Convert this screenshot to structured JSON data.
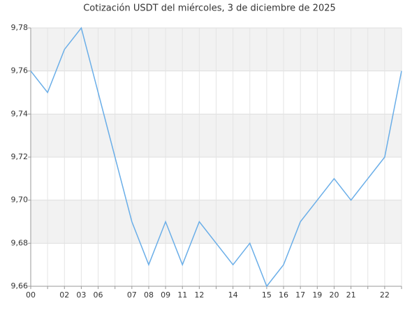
{
  "chart_data": {
    "type": "line",
    "title": "Cotización USDT del miércoles, 3 de diciembre de 2025",
    "categories": [
      "00",
      null,
      "02",
      "03",
      "06",
      null,
      "07",
      "08",
      "09",
      "11",
      "12",
      null,
      "14",
      null,
      "15",
      "16",
      "17",
      "19",
      "20",
      "21",
      null,
      "22",
      null
    ],
    "series": [
      {
        "name": "USDT",
        "color": "#6aaee8",
        "values": [
          9.76,
          9.75,
          9.77,
          9.78,
          9.75,
          9.72,
          9.69,
          9.67,
          9.69,
          9.67,
          9.69,
          9.68,
          9.67,
          9.68,
          9.66,
          9.67,
          9.69,
          9.7,
          9.71,
          9.7,
          9.71,
          9.72,
          9.76
        ]
      }
    ],
    "ylim": [
      9.66,
      9.78
    ],
    "yticks": [
      {
        "value": 9.66,
        "label": "9,66"
      },
      {
        "value": 9.68,
        "label": "9,68"
      },
      {
        "value": 9.7,
        "label": "9,70"
      },
      {
        "value": 9.72,
        "label": "9,72"
      },
      {
        "value": 9.74,
        "label": "9,74"
      },
      {
        "value": 9.76,
        "label": "9,76"
      },
      {
        "value": 9.78,
        "label": "9,78"
      }
    ],
    "grid": true
  }
}
